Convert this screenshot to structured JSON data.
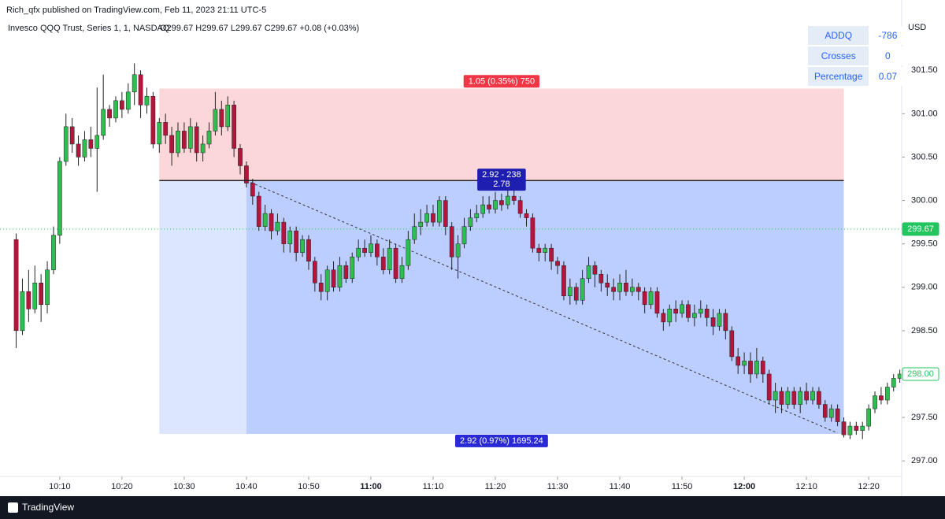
{
  "chart_data": {
    "type": "candlestick",
    "title": "Rich_qfx published on TradingView.com, Feb 11, 2023 21:11 UTC-5",
    "subtitle": "Invesco QQQ Trust, Series 1, 1, NASDAQ",
    "ohlc_text": "O299.67 H299.67 L299.67 C299.67 +0.08 (+0.03%)",
    "ylabel": "USD",
    "footer": "TradingView",
    "up_color": "#2ebd4e",
    "down_color": "#b3163c",
    "grid": false,
    "xlim": [
      -9.6,
      135.3
    ],
    "ylim": [
      296.82,
      302.31
    ],
    "xticks": [
      {
        "value": 0,
        "label": "10:10"
      },
      {
        "value": 10,
        "label": "10:20"
      },
      {
        "value": 20,
        "label": "10:30"
      },
      {
        "value": 30,
        "label": "10:40"
      },
      {
        "value": 40,
        "label": "10:50"
      },
      {
        "value": 50,
        "label": "11:00"
      },
      {
        "value": 60,
        "label": "11:10"
      },
      {
        "value": 70,
        "label": "11:20"
      },
      {
        "value": 80,
        "label": "11:30"
      },
      {
        "value": 90,
        "label": "11:40"
      },
      {
        "value": 100,
        "label": "11:50"
      },
      {
        "value": 110,
        "label": "12:00"
      },
      {
        "value": 120,
        "label": "12:10"
      },
      {
        "value": 130,
        "label": "12:20"
      }
    ],
    "yticks": [
      {
        "value": 297,
        "label": "297.00"
      },
      {
        "value": 297.5,
        "label": "297.50"
      },
      {
        "value": 298,
        "label": "298.00"
      },
      {
        "value": 298.5,
        "label": "298.50"
      },
      {
        "value": 299,
        "label": "299.00"
      },
      {
        "value": 299.5,
        "label": "299.50"
      },
      {
        "value": 300,
        "label": "300.00"
      },
      {
        "value": 300.5,
        "label": "300.50"
      },
      {
        "value": 301,
        "label": "301.00"
      },
      {
        "value": 301.5,
        "label": "301.50"
      }
    ],
    "crosshair": {
      "value": 299.67,
      "label": "299.67",
      "color": "#22c55e"
    },
    "last_price": {
      "value": 298.0,
      "label": "298.00",
      "color": "#22c55e"
    },
    "table": {
      "rows": [
        [
          "ADDQ",
          "-786"
        ],
        [
          "Crosses",
          "0"
        ],
        [
          "Percentage",
          "0.07"
        ]
      ]
    },
    "position": {
      "entry": 300.23,
      "stop": 301.29,
      "target": 297.31,
      "x_start": 16,
      "x_end": 126,
      "x_fill": 30,
      "stop_label": "1.05 (0.35%) 750",
      "entry_label": "2.92 - 238",
      "entry_label2": "2.78",
      "target_label": "2.92 (0.97%) 1695.24",
      "trend_x": [
        30,
        125
      ],
      "trend_y": [
        300.23,
        297.32
      ]
    },
    "x": [
      -7,
      -6,
      -5,
      -4,
      -3,
      -2,
      -1,
      0,
      1,
      2,
      3,
      4,
      5,
      6,
      7,
      8,
      9,
      10,
      11,
      12,
      13,
      14,
      15,
      16,
      17,
      18,
      19,
      20,
      21,
      22,
      23,
      24,
      25,
      26,
      27,
      28,
      29,
      30,
      31,
      32,
      33,
      34,
      35,
      36,
      37,
      38,
      39,
      40,
      41,
      42,
      43,
      44,
      45,
      46,
      47,
      48,
      49,
      50,
      51,
      52,
      53,
      54,
      55,
      56,
      57,
      58,
      59,
      60,
      61,
      62,
      63,
      64,
      65,
      66,
      67,
      68,
      69,
      70,
      71,
      72,
      73,
      74,
      75,
      76,
      77,
      78,
      79,
      80,
      81,
      82,
      83,
      84,
      85,
      86,
      87,
      88,
      89,
      90,
      91,
      92,
      93,
      94,
      95,
      96,
      97,
      98,
      99,
      100,
      101,
      102,
      103,
      104,
      105,
      106,
      107,
      108,
      109,
      110,
      111,
      112,
      113,
      114,
      115,
      116,
      117,
      118,
      119,
      120,
      121,
      122,
      123,
      124,
      125,
      126,
      127,
      128,
      129,
      130,
      131,
      132,
      133,
      134,
      135
    ],
    "open": [
      299.55,
      298.5,
      298.95,
      298.75,
      299.05,
      298.8,
      299.2,
      299.6,
      300.45,
      300.85,
      300.65,
      300.5,
      300.7,
      300.6,
      300.75,
      301.05,
      300.95,
      301.15,
      301.05,
      301.25,
      301.45,
      301.1,
      301.2,
      300.65,
      300.9,
      300.75,
      300.55,
      300.8,
      300.6,
      300.85,
      300.55,
      300.65,
      300.8,
      301.05,
      300.85,
      301.1,
      300.6,
      300.4,
      300.2,
      300.05,
      299.7,
      299.85,
      299.65,
      299.75,
      299.5,
      299.65,
      299.4,
      299.55,
      299.3,
      299.05,
      298.95,
      299.2,
      299.0,
      299.25,
      299.1,
      299.35,
      299.45,
      299.4,
      299.5,
      299.35,
      299.2,
      299.45,
      299.1,
      299.25,
      299.55,
      299.7,
      299.75,
      299.85,
      299.75,
      300.0,
      299.7,
      299.35,
      299.5,
      299.7,
      299.8,
      299.85,
      299.95,
      299.9,
      300.0,
      299.95,
      300.05,
      300.0,
      299.85,
      299.8,
      299.45,
      299.4,
      299.45,
      299.3,
      299.25,
      298.9,
      299.0,
      298.85,
      299.1,
      299.25,
      299.15,
      299.05,
      299.0,
      298.95,
      299.05,
      298.95,
      299.0,
      298.95,
      298.8,
      298.95,
      298.7,
      298.6,
      298.75,
      298.7,
      298.8,
      298.65,
      298.7,
      298.75,
      298.65,
      298.55,
      298.7,
      298.5,
      298.2,
      298.1,
      298.15,
      298.0,
      298.15,
      298.0,
      297.7,
      297.8,
      297.65,
      297.8,
      297.65,
      297.8,
      297.7,
      297.8,
      297.65,
      297.5,
      297.6,
      297.45,
      297.3,
      297.4,
      297.35,
      297.4,
      297.6,
      297.75,
      297.7,
      297.85,
      297.95
    ],
    "high": [
      299.62,
      299.1,
      299.2,
      299.25,
      299.15,
      299.3,
      299.7,
      300.5,
      301.0,
      300.95,
      300.75,
      300.8,
      300.85,
      301.3,
      301.45,
      301.1,
      301.2,
      301.25,
      301.35,
      301.58,
      301.5,
      301.3,
      301.25,
      300.95,
      301.0,
      300.85,
      300.9,
      300.9,
      300.95,
      300.9,
      300.75,
      300.9,
      301.25,
      301.15,
      301.2,
      301.15,
      300.65,
      300.45,
      300.25,
      300.1,
      299.95,
      299.9,
      299.85,
      299.8,
      299.7,
      299.7,
      299.6,
      299.6,
      299.35,
      299.15,
      299.25,
      299.3,
      299.35,
      299.3,
      299.4,
      299.55,
      299.55,
      299.6,
      299.55,
      299.45,
      299.55,
      299.5,
      299.35,
      299.65,
      299.85,
      299.9,
      299.95,
      299.95,
      300.05,
      300.05,
      299.75,
      299.6,
      299.8,
      299.9,
      299.95,
      300.05,
      300.05,
      300.1,
      300.08,
      300.12,
      300.15,
      300.05,
      299.9,
      299.85,
      299.5,
      299.5,
      299.5,
      299.35,
      299.3,
      299.1,
      299.05,
      299.2,
      299.35,
      299.3,
      299.2,
      299.15,
      299.1,
      299.15,
      299.2,
      299.1,
      299.05,
      299.0,
      299.0,
      299.0,
      298.75,
      298.8,
      298.85,
      298.85,
      298.85,
      298.8,
      298.85,
      298.8,
      298.75,
      298.75,
      298.75,
      298.55,
      298.3,
      298.25,
      298.25,
      298.3,
      298.2,
      298.05,
      297.9,
      297.85,
      297.85,
      297.85,
      297.85,
      297.9,
      297.85,
      297.85,
      297.7,
      297.65,
      297.65,
      297.5,
      297.45,
      297.45,
      297.45,
      297.65,
      297.8,
      297.85,
      297.9,
      298.0,
      298.05
    ],
    "low": [
      298.3,
      298.45,
      298.6,
      298.7,
      298.6,
      298.7,
      299.15,
      299.5,
      300.4,
      300.55,
      300.4,
      300.45,
      300.5,
      300.1,
      300.7,
      300.85,
      300.9,
      300.95,
      301.0,
      301.1,
      300.95,
      301.0,
      300.6,
      300.55,
      300.65,
      300.4,
      300.5,
      300.55,
      300.55,
      300.45,
      300.45,
      300.6,
      300.75,
      300.75,
      300.8,
      300.5,
      300.3,
      300.15,
      299.95,
      299.65,
      299.65,
      299.55,
      299.6,
      299.4,
      299.4,
      299.3,
      299.35,
      299.2,
      298.95,
      298.85,
      298.85,
      298.95,
      298.95,
      299.05,
      299.05,
      299.3,
      299.35,
      299.35,
      299.25,
      299.15,
      299.15,
      299.05,
      299.05,
      299.2,
      299.5,
      299.6,
      299.7,
      299.7,
      299.7,
      299.6,
      299.2,
      299.1,
      299.45,
      299.65,
      299.75,
      299.8,
      299.85,
      299.85,
      299.88,
      299.9,
      299.95,
      299.8,
      299.7,
      299.4,
      299.3,
      299.3,
      299.2,
      299.15,
      298.85,
      298.8,
      298.8,
      298.8,
      299.05,
      299.0,
      298.95,
      298.9,
      298.85,
      298.85,
      298.9,
      298.9,
      298.85,
      298.7,
      298.75,
      298.65,
      298.5,
      298.55,
      298.6,
      298.65,
      298.6,
      298.55,
      298.65,
      298.55,
      298.45,
      298.5,
      298.4,
      298.15,
      298.0,
      298.0,
      297.9,
      297.95,
      297.9,
      297.65,
      297.55,
      297.55,
      297.6,
      297.6,
      297.55,
      297.65,
      297.65,
      297.6,
      297.45,
      297.45,
      297.4,
      297.27,
      297.25,
      297.3,
      297.25,
      297.35,
      297.55,
      297.65,
      297.65,
      297.8,
      297.9
    ],
    "close": [
      298.5,
      298.95,
      298.75,
      299.05,
      298.8,
      299.2,
      299.6,
      300.45,
      300.85,
      300.65,
      300.5,
      300.7,
      300.6,
      300.75,
      301.05,
      300.95,
      301.15,
      301.05,
      301.25,
      301.45,
      301.1,
      301.2,
      300.65,
      300.9,
      300.75,
      300.55,
      300.8,
      300.6,
      300.85,
      300.55,
      300.65,
      300.8,
      301.05,
      300.85,
      301.1,
      300.6,
      300.4,
      300.2,
      300.05,
      299.7,
      299.85,
      299.65,
      299.75,
      299.5,
      299.65,
      299.4,
      299.55,
      299.3,
      299.05,
      298.95,
      299.2,
      299.0,
      299.25,
      299.1,
      299.35,
      299.45,
      299.4,
      299.5,
      299.35,
      299.2,
      299.45,
      299.1,
      299.25,
      299.55,
      299.7,
      299.75,
      299.85,
      299.75,
      300.0,
      299.7,
      299.35,
      299.5,
      299.7,
      299.8,
      299.85,
      299.95,
      299.9,
      300.0,
      299.95,
      300.05,
      300.0,
      299.85,
      299.8,
      299.45,
      299.4,
      299.45,
      299.3,
      299.25,
      298.9,
      299.0,
      298.85,
      299.1,
      299.25,
      299.15,
      299.05,
      299.0,
      298.95,
      299.05,
      298.95,
      299.0,
      298.95,
      298.8,
      298.95,
      298.7,
      298.6,
      298.75,
      298.7,
      298.8,
      298.65,
      298.7,
      298.75,
      298.65,
      298.55,
      298.7,
      298.5,
      298.2,
      298.1,
      298.15,
      298.0,
      298.15,
      298.0,
      297.7,
      297.8,
      297.65,
      297.8,
      297.65,
      297.8,
      297.7,
      297.8,
      297.65,
      297.5,
      297.6,
      297.45,
      297.3,
      297.4,
      297.35,
      297.4,
      297.6,
      297.75,
      297.7,
      297.85,
      297.95,
      298.0
    ]
  }
}
